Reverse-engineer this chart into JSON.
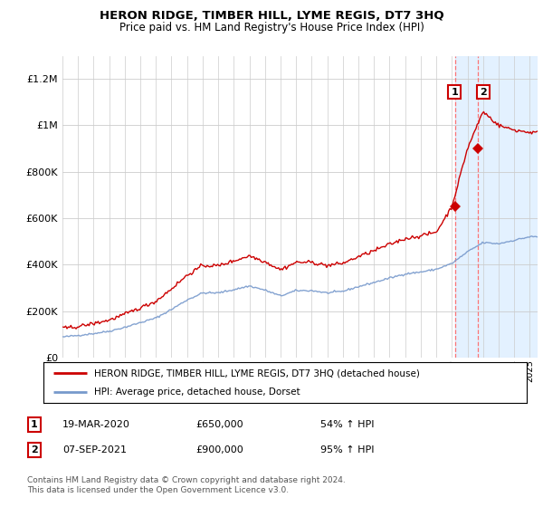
{
  "title": "HERON RIDGE, TIMBER HILL, LYME REGIS, DT7 3HQ",
  "subtitle": "Price paid vs. HM Land Registry's House Price Index (HPI)",
  "legend_line1": "HERON RIDGE, TIMBER HILL, LYME REGIS, DT7 3HQ (detached house)",
  "legend_line2": "HPI: Average price, detached house, Dorset",
  "annotation1_date": "19-MAR-2020",
  "annotation1_price": "£650,000",
  "annotation1_hpi": "54% ↑ HPI",
  "annotation2_date": "07-SEP-2021",
  "annotation2_price": "£900,000",
  "annotation2_hpi": "95% ↑ HPI",
  "footer": "Contains HM Land Registry data © Crown copyright and database right 2024.\nThis data is licensed under the Open Government Licence v3.0.",
  "red_color": "#cc0000",
  "blue_color": "#7799cc",
  "annotation_box_color": "#cc0000",
  "shaded_region_color": "#ddeeff",
  "ylim": [
    0,
    1300000
  ],
  "yticks": [
    0,
    200000,
    400000,
    600000,
    800000,
    1000000,
    1200000
  ],
  "sale1_x": 2020.21,
  "sale1_y": 650000,
  "sale2_x": 2021.67,
  "sale2_y": 900000,
  "shaded_x_start": 2020.21,
  "shaded_x_end": 2025.5,
  "xlim": [
    1995,
    2025.5
  ]
}
